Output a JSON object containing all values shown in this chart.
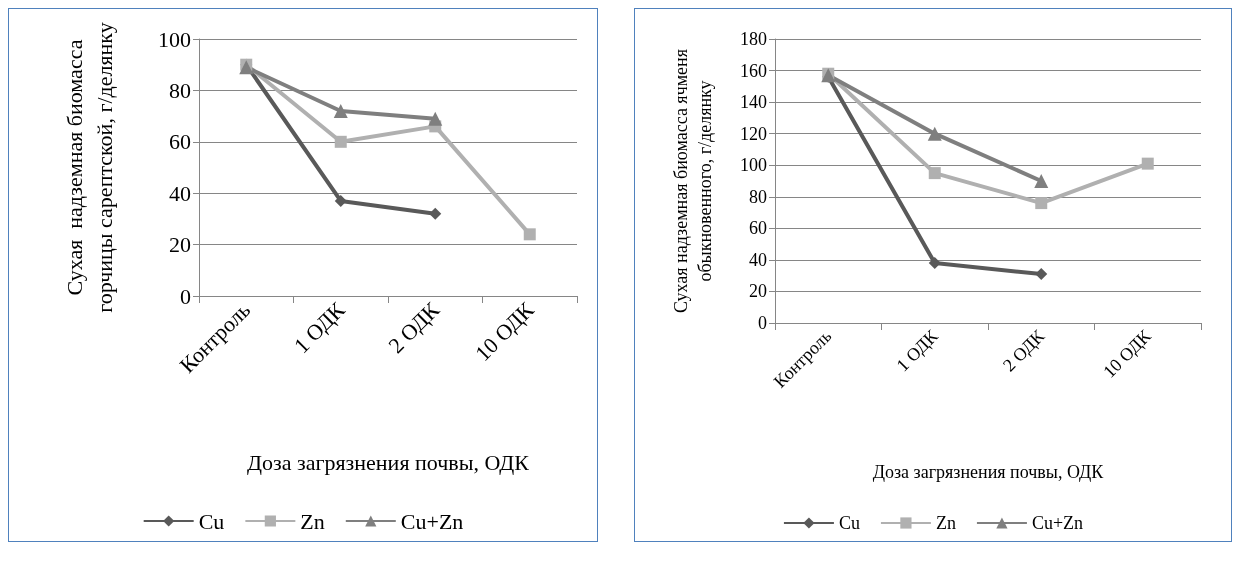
{
  "chart_data": [
    {
      "type": "line",
      "categories": [
        "Контроль",
        "1 ОДК",
        "2 ОДК",
        "10 ОДК"
      ],
      "xlabel": "Доза загрязнения почвы, ОДК",
      "ylabel": "Сухая  надземная биомасса горчицы сарептской, г/делянку",
      "ylim": [
        0,
        100
      ],
      "yticks": [
        0,
        20,
        40,
        60,
        80,
        100
      ],
      "grid": "y",
      "legend": "bottom",
      "series": [
        {
          "name": "Cu",
          "color": "#595959",
          "marker": "diamond",
          "values": [
            90,
            37,
            32,
            null
          ]
        },
        {
          "name": "Zn",
          "color": "#b0b0b0",
          "marker": "square",
          "values": [
            90,
            60,
            66,
            24
          ]
        },
        {
          "name": "Cu+Zn",
          "color": "#7f7f7f",
          "marker": "triangle",
          "values": [
            89,
            72,
            69,
            null
          ]
        }
      ]
    },
    {
      "type": "line",
      "categories": [
        "Контроль",
        "1 ОДК",
        "2 ОДК",
        "10 ОДК"
      ],
      "xlabel": "Доза загрязнения почвы, ОДК",
      "ylabel": "Сухая надземная биомасса ячменя обыкновенного, г/делянку",
      "ylim": [
        0,
        180
      ],
      "yticks": [
        0,
        20,
        40,
        60,
        80,
        100,
        120,
        140,
        160,
        180
      ],
      "grid": "y",
      "legend": "bottom",
      "series": [
        {
          "name": "Cu",
          "color": "#595959",
          "marker": "diamond",
          "values": [
            156,
            38,
            31,
            null
          ]
        },
        {
          "name": "Zn",
          "color": "#b0b0b0",
          "marker": "square",
          "values": [
            158,
            95,
            76,
            101
          ]
        },
        {
          "name": "Cu+Zn",
          "color": "#7f7f7f",
          "marker": "triangle",
          "values": [
            157,
            120,
            90,
            null
          ]
        }
      ]
    }
  ]
}
